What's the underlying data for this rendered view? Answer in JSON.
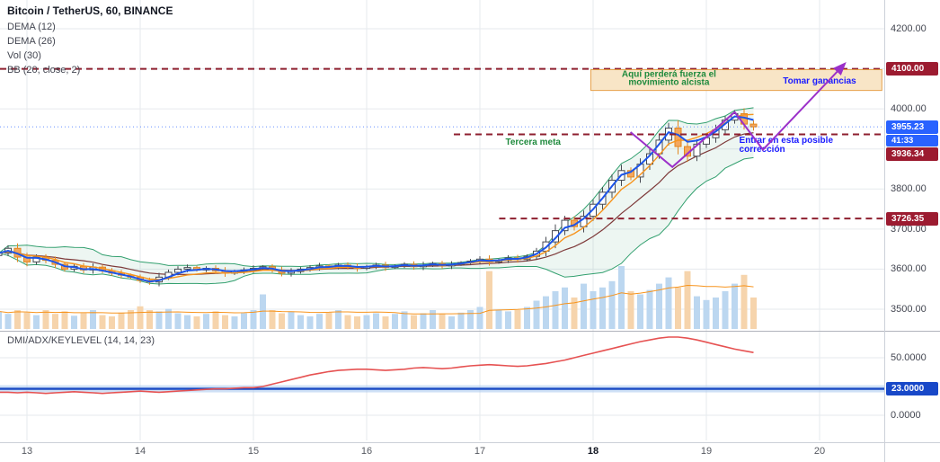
{
  "header": {
    "symbol_title": "Bitcoin / TetherUS, 60, BINANCE",
    "indicators": [
      "DEMA (12)",
      "DEMA (26)",
      "Vol (30)",
      "BB (20, close, 2)"
    ],
    "lower_indicator": "DMI/ADX/KEYLEVEL (14, 14, 23)"
  },
  "price_axis": {
    "ticks": [
      {
        "label": "4200.00",
        "value": 4200
      },
      {
        "label": "4000.00",
        "value": 4000
      },
      {
        "label": "3800.00",
        "value": 3800
      },
      {
        "label": "3700.00",
        "value": 3700
      },
      {
        "label": "3600.00",
        "value": 3600
      },
      {
        "label": "3500.00",
        "value": 3500
      }
    ],
    "badges": [
      {
        "label": "4100.00",
        "value": 4100.0,
        "bg": "#9c1b30",
        "panel": "main",
        "countdown": false
      },
      {
        "label": "3955.23",
        "value": 3955.23,
        "bg": "#2962ff",
        "panel": "main",
        "countdown": false
      },
      {
        "label": "41:33",
        "value": 3955.23,
        "bg": "#2962ff",
        "panel": "main",
        "countdown": true
      },
      {
        "label": "3936.34",
        "value": 3936.34,
        "bg": "#9c1b30",
        "panel": "main",
        "countdown": false
      },
      {
        "label": "3726.35",
        "value": 3726.35,
        "bg": "#9c1b30",
        "panel": "main",
        "countdown": false
      },
      {
        "label": "23.0000",
        "value": 23,
        "bg": "#1848c8",
        "panel": "lower",
        "countdown": false
      }
    ]
  },
  "lower_axis": {
    "ticks": [
      {
        "label": "50.0000",
        "value": 50
      },
      {
        "label": "0.0000",
        "value": 0
      }
    ]
  },
  "time_axis": {
    "ticks": [
      {
        "label": "13",
        "day": 13
      },
      {
        "label": "14",
        "day": 14
      },
      {
        "label": "15",
        "day": 15
      },
      {
        "label": "16",
        "day": 16
      },
      {
        "label": "17",
        "day": 17
      },
      {
        "label": "18",
        "day": 18
      },
      {
        "label": "19",
        "day": 19
      },
      {
        "label": "20",
        "day": 20
      }
    ],
    "bold_label": "18"
  },
  "chart_data": {
    "type": "candlestick",
    "title": "Bitcoin / TetherUS, 60, BINANCE",
    "timeframe_minutes": 60,
    "x_range_days": [
      12.75,
      20.57
    ],
    "price_range": [
      3450,
      4270
    ],
    "start_day": 12.75,
    "day_step": 0.083333,
    "last_price": 3955.23,
    "closes": [
      3640,
      3652,
      3630,
      3618,
      3630,
      3622,
      3612,
      3600,
      3607,
      3598,
      3605,
      3596,
      3590,
      3585,
      3580,
      3572,
      3568,
      3580,
      3592,
      3600,
      3604,
      3598,
      3602,
      3596,
      3590,
      3594,
      3598,
      3602,
      3606,
      3598,
      3590,
      3594,
      3600,
      3604,
      3608,
      3605,
      3610,
      3606,
      3602,
      3606,
      3610,
      3604,
      3608,
      3612,
      3606,
      3610,
      3614,
      3608,
      3612,
      3616,
      3620,
      3625,
      3618,
      3622,
      3628,
      3624,
      3632,
      3645,
      3668,
      3696,
      3722,
      3706,
      3732,
      3762,
      3792,
      3822,
      3846,
      3830,
      3862,
      3888,
      3922,
      3952,
      3906,
      3882,
      3912,
      3928,
      3948,
      3972,
      3988,
      3962,
      3955.23
    ],
    "volumes": [
      0.28,
      0.24,
      0.3,
      0.26,
      0.22,
      0.3,
      0.24,
      0.28,
      0.21,
      0.25,
      0.3,
      0.22,
      0.2,
      0.26,
      0.3,
      0.36,
      0.3,
      0.28,
      0.32,
      0.25,
      0.22,
      0.2,
      0.24,
      0.28,
      0.22,
      0.2,
      0.25,
      0.3,
      0.55,
      0.3,
      0.25,
      0.28,
      0.22,
      0.2,
      0.24,
      0.26,
      0.3,
      0.22,
      0.2,
      0.22,
      0.25,
      0.2,
      0.24,
      0.28,
      0.22,
      0.25,
      0.3,
      0.24,
      0.2,
      0.26,
      0.3,
      0.35,
      0.92,
      0.3,
      0.28,
      0.3,
      0.35,
      0.45,
      0.52,
      0.6,
      0.66,
      0.5,
      0.72,
      0.6,
      0.66,
      0.76,
      1.0,
      0.6,
      0.55,
      0.62,
      0.72,
      0.82,
      0.66,
      0.92,
      0.52,
      0.46,
      0.5,
      0.6,
      0.72,
      0.86,
      0.5
    ],
    "adx": [
      20,
      20,
      19.5,
      20,
      19.5,
      19,
      19.5,
      20,
      20.5,
      20,
      19.5,
      19,
      19.5,
      20,
      20.5,
      21,
      20.5,
      20,
      20.5,
      21,
      21.5,
      22,
      22.5,
      23,
      23,
      23.5,
      24,
      24,
      25,
      27,
      29,
      31,
      33,
      35,
      36.5,
      38,
      39,
      39.5,
      40,
      40,
      39.5,
      39,
      39.5,
      40,
      41,
      41.5,
      41,
      40.5,
      41,
      42,
      43,
      43.5,
      44,
      43.5,
      43,
      42.5,
      43,
      44,
      45,
      46.5,
      48,
      50,
      52,
      54,
      56,
      58,
      60,
      62,
      64,
      65.5,
      67,
      68,
      68,
      67,
      65.5,
      63.5,
      61.5,
      59.5,
      57.5,
      56,
      54.5
    ],
    "key_level": 23,
    "resistance_lines": [
      {
        "price": 4100.0,
        "from_day": 12.75,
        "label": "4100.00"
      },
      {
        "price": 3936.34,
        "from_day": 16.77,
        "label": "3936.34"
      },
      {
        "price": 3726.35,
        "from_day": 17.17,
        "label": "3726.35"
      }
    ],
    "annotations": {
      "box": {
        "x1_day": 17.98,
        "x2_day": 20.55,
        "top_price": 4098,
        "bottom_price": 4046,
        "fill": "#f8e3c2",
        "border": "#e59a3c"
      },
      "texts": [
        {
          "text": "Aquí perderá fuerza el",
          "day": 18.67,
          "price": 4087,
          "color": "#1f8a3d",
          "anchor": "middle"
        },
        {
          "text": "movimiento alcista",
          "day": 18.67,
          "price": 4066,
          "color": "#1f8a3d",
          "anchor": "middle"
        },
        {
          "text": "Tomar ganancias",
          "day": 20.0,
          "price": 4070,
          "color": "#1a1aff",
          "anchor": "middle"
        },
        {
          "text": "Tercera meta",
          "day": 17.47,
          "price": 3917,
          "color": "#1f8a3d",
          "anchor": "middle"
        },
        {
          "text": "Entrar en esta posible",
          "day": 19.29,
          "price": 3922,
          "color": "#1a1aff",
          "anchor": "start"
        },
        {
          "text": "corrección",
          "day": 19.29,
          "price": 3899,
          "color": "#1a1aff",
          "anchor": "start"
        }
      ],
      "arrow": {
        "points_day_price": [
          [
            18.33,
            3942
          ],
          [
            18.7,
            3855
          ],
          [
            19.25,
            3992
          ],
          [
            19.5,
            3898
          ],
          [
            20.22,
            4112
          ]
        ],
        "color": "#9b30c9"
      }
    },
    "colors": {
      "up_fill": "#ffffff",
      "up_stroke": "#474a52",
      "down_fill": "#f3a75f",
      "down_stroke": "#e2861f",
      "vol_up": "#bcd7f0",
      "vol_down": "#f6d4ac",
      "dema_fast": "#1c54e8",
      "dema_slow": "#f7941d",
      "bb_basis": "#7e3a3a",
      "bb_band": "#33a06f",
      "bb_fill": "rgba(51,160,111,0.09)",
      "vol_ma": "#f7941d",
      "adx": "#e65252",
      "key_level_line": "#1949c4",
      "key_level_band": "#a8c8ee",
      "resistance": "#8e1f2f",
      "price_line": "#2962ff",
      "grid": "#e6eaee",
      "separator": "#b0b3bc",
      "axis_border": "#ccd0d8"
    }
  }
}
